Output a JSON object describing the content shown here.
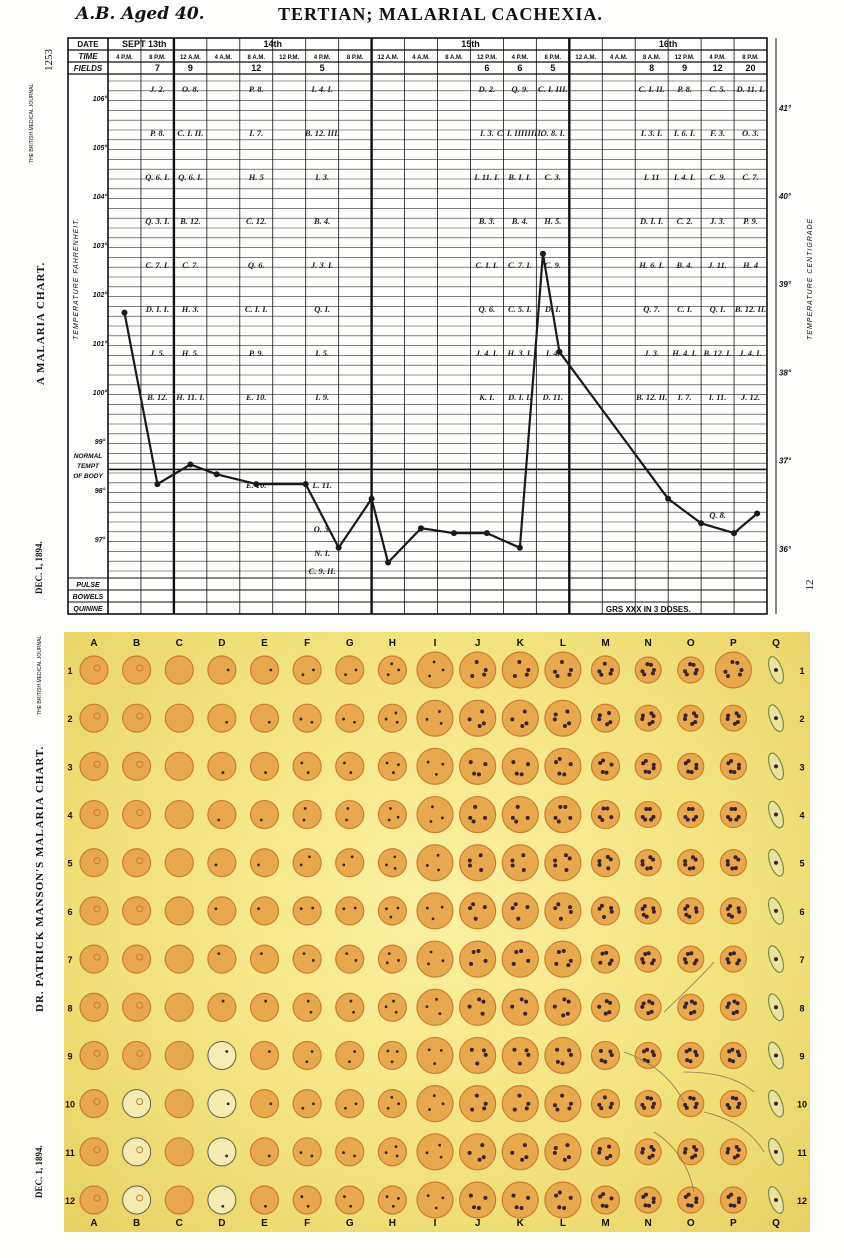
{
  "top": {
    "patient": "A.B. Aged 40.",
    "title": "TERTIAN; MALARIAL CACHEXIA.",
    "page_number": "1253",
    "journal": "THE BRITISH MEDICAL JOURNAL",
    "left_title": "A MALARIA CHART.",
    "left_date": "DEC. 1, 1894.",
    "right_axis_label": "TEMPERATURE CENTIGRADE",
    "left_axis_label": "TEMPERATURE FAHRENHEIT.",
    "side_number": "12",
    "row_labels": {
      "date": "DATE",
      "time": "TIME",
      "fields": "FIELDS",
      "normal": [
        "NORMAL",
        "TEMPT",
        "OF BODY"
      ],
      "pulse": "PULSE",
      "bowels": "BOWELS",
      "quinine": "QUININE"
    },
    "quinine_note": "GRS XXX IN 3 DOSES.",
    "dates": [
      "SEPT 13th",
      "14th",
      "15th",
      "16th"
    ],
    "times": [
      "4 P.M.",
      "8 P.M.",
      "12 A.M.",
      "4 A.M.",
      "8 A.M.",
      "12 P.M.",
      "4 P.M.",
      "8 P.M.",
      "12 A.M.",
      "4 A.M.",
      "8 A.M.",
      "12 P.M.",
      "4 P.M.",
      "8 P.M.",
      "12 A.M.",
      "4 A.M.",
      "8 A.M.",
      "12 P.M.",
      "4 P.M.",
      "8 P.M."
    ],
    "fields": [
      "",
      "7",
      "9",
      "",
      "12",
      "",
      "5",
      "",
      "",
      "",
      "",
      "6",
      "6",
      "5",
      "",
      "",
      "8",
      "9",
      "12",
      "20"
    ],
    "fahrenheit_ticks": [
      "106°",
      "105°",
      "104°",
      "103°",
      "102°",
      "101°",
      "100°",
      "99°",
      "98°",
      "97°"
    ],
    "centigrade_ticks": [
      "41°",
      "40°",
      "39°",
      "38°",
      "37°",
      "36°"
    ],
    "annotation_columns": [
      {
        "col": 1,
        "labels": [
          "J. 2.",
          "P. 8.",
          "Q. 6. I.",
          "Q. 3. I.",
          "C. 7. I.",
          "D. I. I.",
          "J. 5.",
          "B. 12."
        ]
      },
      {
        "col": 2,
        "labels": [
          "O. 8.",
          "C. I. II.",
          "Q. 6. I.",
          "B. 12.",
          "C. 7.",
          "H. 3.",
          "H. 5.",
          "H. 11. I."
        ]
      },
      {
        "col": 4,
        "labels": [
          "P. 8.",
          "I. 7.",
          "H. 5",
          "C. 12.",
          "Q. 6.",
          "C. I. I.",
          "P. 9.",
          "E. 10.",
          "",
          "E. 10."
        ]
      },
      {
        "col": 6,
        "labels": [
          "I. 4. I.",
          "B. 12. III.",
          "I. 3.",
          "B. 4.",
          "J. 3. I.",
          "Q. I.",
          "I. 5.",
          "I. 9.",
          "",
          "L. 11.",
          "O. 3."
        ]
      },
      {
        "col": 11,
        "labels": [
          "D. 2.",
          "I. 3.",
          "I. 11. I.",
          "B. 3.",
          "C. I. I.",
          "Q. 6.",
          "J. 4. I.",
          "K. I."
        ]
      },
      {
        "col": 12,
        "labels": [
          "Q. 9.",
          "C. I. IIIIIIII.",
          "B. I. I.",
          "B. 4.",
          "C. 7. I.",
          "C. 5. I.",
          "H. 3. I.",
          "D. I. I."
        ]
      },
      {
        "col": 13,
        "labels": [
          "C. I. III.",
          "O. 8. I.",
          "C. 3.",
          "H. 5.",
          "C. 9.",
          "D. I.",
          "I. 4.",
          "D. 11."
        ]
      },
      {
        "col": 16,
        "labels": [
          "C. I. II.",
          "I. 3. I.",
          "I. 11",
          "D. I. I.",
          "H. 6. I.",
          "Q. 7.",
          "J. 3.",
          "B. 12. II."
        ]
      },
      {
        "col": 17,
        "labels": [
          "P. 8.",
          "I. 6. I.",
          "I. 4. I.",
          "C. 2.",
          "B. 4.",
          "C. I.",
          "H. 4. I.",
          "I. 7."
        ]
      },
      {
        "col": 18,
        "labels": [
          "C. 5.",
          "F. 3.",
          "C. 9.",
          "J. 3.",
          "J. 11.",
          "Q. I.",
          "B. 12. I.",
          "I. 11."
        ]
      },
      {
        "col": 19,
        "labels": [
          "D. 11. I.",
          "O. 3.",
          "C. 7.",
          "P. 9.",
          "H. 4",
          "B. 12. II.",
          "J. 4. I.",
          "J. 12."
        ]
      }
    ],
    "low_annotations": [
      "N. I.",
      "C. 9. II.",
      "Q. 8."
    ]
  },
  "chart_data": {
    "type": "line",
    "title": "TERTIAN; MALARIAL CACHEXIA.",
    "xlabel": "",
    "ylabel": "TEMPERATURE FAHRENHEIT.",
    "y2label": "TEMPERATURE CENTIGRADE",
    "ylim": [
      96,
      106.5
    ],
    "x": [
      "Sept 13 4 P.M.",
      "Sept 13 8 P.M.",
      "Sept 14 12 A.M.",
      "Sept 14 4 A.M.",
      "Sept 14 8 A.M.",
      "Sept 14 12 P.M.",
      "Sept 14 4 P.M.",
      "Sept 14 8 P.M.",
      "Sept 15 12 A.M.",
      "Sept 15 4 A.M.",
      "Sept 15 8 A.M.",
      "Sept 15 12 P.M.",
      "Sept 15 4 P.M.",
      "Sept 15 8 P.M.",
      "Sept 16 12 A.M.",
      "Sept 16 4 A.M.",
      "Sept 16 8 A.M.",
      "Sept 16 12 P.M.",
      "Sept 16 4 P.M.",
      "Sept 16 8 P.M."
    ],
    "points": [
      {
        "x": 0.5,
        "y": 101.6
      },
      {
        "x": 1.5,
        "y": 98.1
      },
      {
        "x": 2.5,
        "y": 98.5
      },
      {
        "x": 3.3,
        "y": 98.3
      },
      {
        "x": 4.5,
        "y": 98.1
      },
      {
        "x": 6.0,
        "y": 98.1
      },
      {
        "x": 7.0,
        "y": 96.8
      },
      {
        "x": 8.0,
        "y": 97.8
      },
      {
        "x": 8.5,
        "y": 96.5
      },
      {
        "x": 9.5,
        "y": 97.2
      },
      {
        "x": 10.5,
        "y": 97.1
      },
      {
        "x": 11.5,
        "y": 97.1
      },
      {
        "x": 12.5,
        "y": 96.8
      },
      {
        "x": 13.2,
        "y": 102.8
      },
      {
        "x": 13.7,
        "y": 100.8
      },
      {
        "x": 17.0,
        "y": 97.8
      },
      {
        "x": 18.0,
        "y": 97.3
      },
      {
        "x": 19.0,
        "y": 97.1
      },
      {
        "x": 19.7,
        "y": 97.5
      }
    ],
    "grid": true
  },
  "plate": {
    "title": "DR. PATRICK MANSON'S MALARIA CHART.",
    "date": "DEC. 1, 1894.",
    "journal": "THE BRITISH MEDICAL JOURNAL",
    "columns": [
      "A",
      "B",
      "C",
      "D",
      "E",
      "F",
      "G",
      "H",
      "I",
      "J",
      "K",
      "L",
      "M",
      "N",
      "O",
      "P",
      "Q"
    ],
    "rows": [
      "1",
      "2",
      "3",
      "4",
      "5",
      "6",
      "7",
      "8",
      "9",
      "10",
      "11",
      "12"
    ]
  },
  "colors": {
    "ink": "#1a1a1a",
    "line": "#222222",
    "plate_bg": "#f3e47f",
    "cell": "#e8a64a",
    "cell_dark": "#c97a2c",
    "stain": "#3a2230"
  }
}
